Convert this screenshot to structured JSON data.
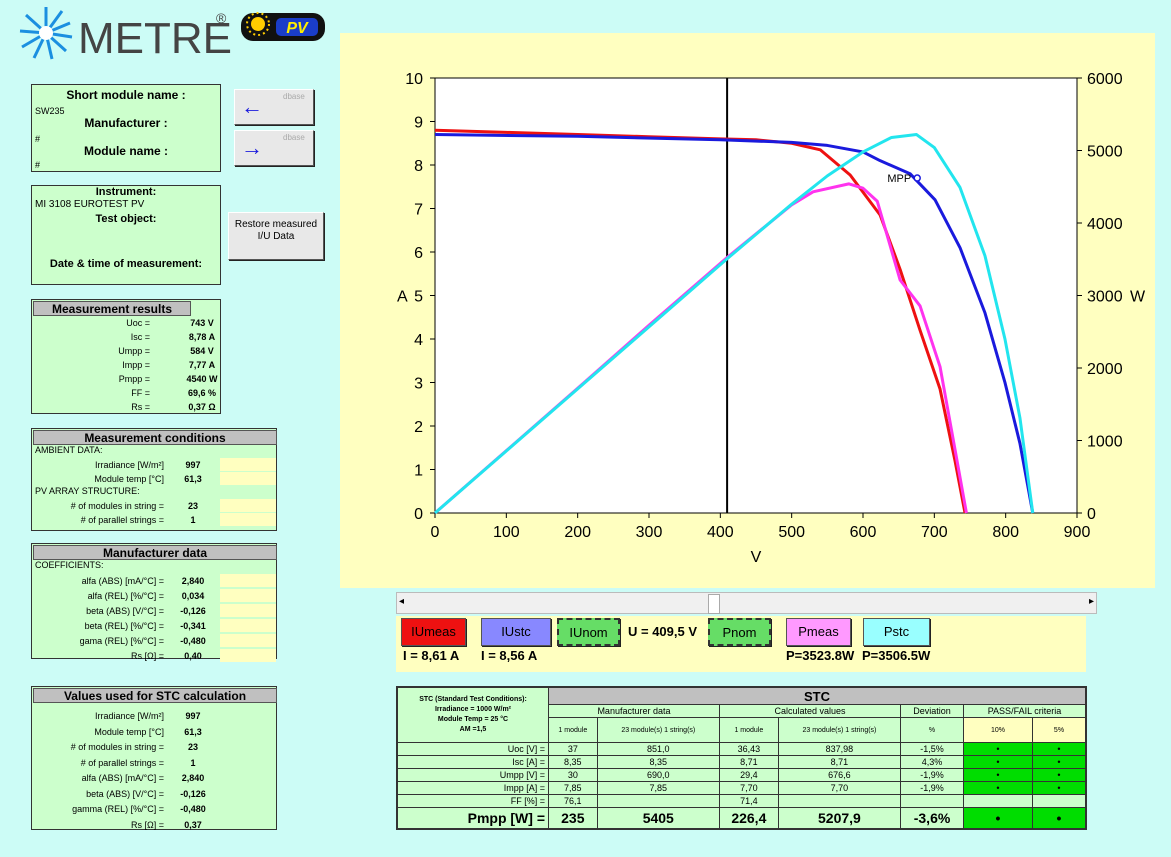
{
  "header": {
    "brand": "METREL",
    "registered": "®",
    "badge": "PV"
  },
  "module": {
    "short_name_label": "Short module name :",
    "short_name": "SW235",
    "manufacturer_label": "Manufacturer :",
    "manufacturer": "#",
    "module_name_label": "Module name :",
    "module_name": "#"
  },
  "db_buttons": [
    "dbase",
    "dbase"
  ],
  "instrument": {
    "instrument_label": "Instrument:",
    "instrument": "MI 3108 EUROTEST PV",
    "test_object_label": "Test object:",
    "date_label": "Date & time of measurement:"
  },
  "restore_button": "Restore measured I/U Data",
  "results": {
    "title": "Measurement results",
    "rows": [
      [
        "Uoc =",
        "743 V"
      ],
      [
        "Isc =",
        "8,78 A"
      ],
      [
        "Umpp =",
        "584 V"
      ],
      [
        "Impp =",
        "7,77 A"
      ],
      [
        "Pmpp =",
        "4540 W"
      ],
      [
        "FF =",
        "69,6 %"
      ],
      [
        "Rs =",
        "0,37 Ω"
      ]
    ]
  },
  "conditions": {
    "title": "Measurement conditions",
    "rows": [
      "AMBIENT DATA:",
      [
        "Irradiance [W/m²]",
        "997"
      ],
      [
        "Module temp [°C]",
        "61,3"
      ],
      "PV ARRAY STRUCTURE:",
      [
        "# of modules in string =",
        "23"
      ],
      [
        "# of parallel strings =",
        "1"
      ]
    ]
  },
  "manufacturer": {
    "title": "Manufacturer data",
    "rows": [
      "COEFFICIENTS:",
      [
        "alfa (ABS) [mA/°C] =",
        "2,840"
      ],
      [
        "alfa (REL) [%/°C] =",
        "0,034"
      ],
      [
        "beta (ABS) [V/°C] =",
        "-0,126"
      ],
      [
        "beta (REL) [%/°C] =",
        "-0,341"
      ],
      [
        "gama (REL) [%/°C] =",
        "-0,480"
      ],
      [
        "Rs [Ω] =",
        "0,40"
      ]
    ]
  },
  "stc_values": {
    "title": "Values used for STC calculation",
    "rows": [
      [
        "Irradiance [W/m²]",
        "997"
      ],
      [
        "Module temp [°C]",
        "61,3"
      ],
      [
        "# of modules in string =",
        "23"
      ],
      [
        "# of parallel strings =",
        "1"
      ],
      [
        "alfa (ABS) [mA/°C] =",
        "2,840"
      ],
      [
        "beta (ABS) [V/°C] =",
        "-0,126"
      ],
      [
        "gamma (REL) [%/°C] =",
        "-0,480"
      ],
      [
        "Rs [Ω] =",
        "0,37"
      ]
    ]
  },
  "chart_data": {
    "type": "line",
    "x_label": "V",
    "y_label": "A",
    "y2_label": "W",
    "xlim": [
      0,
      900
    ],
    "xticks": [
      0,
      100,
      200,
      300,
      400,
      500,
      600,
      700,
      800,
      900
    ],
    "ylim": [
      0,
      10
    ],
    "yticks": [
      0,
      1,
      2,
      3,
      4,
      5,
      6,
      7,
      8,
      9,
      10
    ],
    "y2lim": [
      0,
      6000
    ],
    "y2ticks": [
      0,
      1000,
      2000,
      3000,
      4000,
      5000,
      6000
    ],
    "cursor_x": 409.5,
    "series": [
      {
        "name": "IUmeas",
        "color": "#ee1111",
        "x": [
          0,
          100,
          200,
          300,
          400,
          450,
          500,
          540,
          582,
          624,
          652,
          680,
          708,
          729,
          743
        ],
        "values": [
          8.8,
          8.75,
          8.7,
          8.65,
          8.6,
          8.58,
          8.5,
          8.35,
          7.77,
          6.85,
          5.6,
          4.2,
          2.85,
          1.2,
          0
        ]
      },
      {
        "name": "IUstc",
        "color": "#1a1add",
        "x": [
          0,
          200,
          400,
          500,
          550,
          600,
          624,
          666,
          701,
          736,
          771,
          799,
          820,
          838
        ],
        "values": [
          8.7,
          8.66,
          8.58,
          8.52,
          8.45,
          8.3,
          8.1,
          7.8,
          7.2,
          6.1,
          4.6,
          3.0,
          1.6,
          0
        ],
        "axis": "y"
      },
      {
        "name": "Pmeas",
        "color": "#ff33ee",
        "x": [
          0,
          100,
          200,
          300,
          409.5,
          500,
          530,
          580,
          600,
          620,
          652,
          680,
          708,
          729,
          745
        ],
        "values": [
          0,
          860,
          1720,
          2590,
          3524,
          4250,
          4430,
          4540,
          4480,
          4300,
          3214,
          2856,
          2018,
          875,
          0
        ],
        "axis": "y2"
      },
      {
        "name": "Pstc",
        "color": "#22e5ee",
        "x": [
          0,
          200,
          409.5,
          500,
          550,
          600,
          640,
          675,
          700,
          736,
          771,
          799,
          820,
          838
        ],
        "values": [
          0,
          1712,
          3506.5,
          4260,
          4650,
          4980,
          5180,
          5220,
          5040,
          4490,
          3547,
          2400,
          1312,
          0
        ],
        "axis": "y2"
      }
    ],
    "annotations": [
      {
        "text": "MPP",
        "x": 676,
        "y": 7.7
      }
    ]
  },
  "readout": {
    "nom_buttons": [
      "IUnom",
      "Pnom"
    ],
    "voltage": "U = 409,5 V",
    "i_meas": "I = 8,61 A",
    "i_stc": "I = 8,56 A",
    "p_meas": "P=3523.8W",
    "p_stc": "P=3506.5W"
  },
  "stc_table": {
    "corner": [
      "STC (Standard Test Conditions):",
      "Irradiance = 1000 W/m²",
      "Module Temp = 25 °C",
      "AM =1,5"
    ],
    "title": "STC",
    "groups": [
      "Manufacturer data",
      "Calculated values",
      "Deviation",
      "PASS/FAIL criteria"
    ],
    "subheads": [
      "1 module",
      "23 module(s) 1 string(s)",
      "1 module",
      "23 module(s) 1 string(s)",
      "%",
      "10%",
      "5%"
    ],
    "rows": [
      [
        "Uoc [V] =",
        "37",
        "851,0",
        "36,43",
        "837,98",
        "-1,5%",
        "•",
        "•"
      ],
      [
        "Isc [A] =",
        "8,35",
        "8,35",
        "8,71",
        "8,71",
        "4,3%",
        "•",
        "•"
      ],
      [
        "Umpp [V] =",
        "30",
        "690,0",
        "29,4",
        "676,6",
        "-1,9%",
        "•",
        "•"
      ],
      [
        "Impp [A] =",
        "7,85",
        "7,85",
        "7,70",
        "7,70",
        "-1,9%",
        "•",
        "•"
      ],
      [
        "FF [%] =",
        "76,1",
        null,
        "71,4",
        null,
        null,
        null,
        null
      ],
      [
        "Pmpp [W] =",
        "235",
        "5405",
        "226,4",
        "5207,9",
        "-3,6%",
        "•",
        "•"
      ]
    ]
  }
}
